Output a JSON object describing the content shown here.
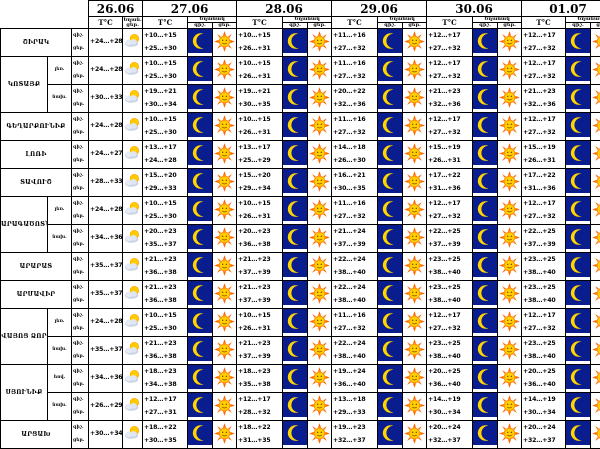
{
  "dates": [
    "26.06",
    "27.06",
    "28.06",
    "29.06",
    "30.06",
    "01.07"
  ],
  "temp_header": "T°C",
  "night_label": "գիշ.",
  "day_label": "ցեր.",
  "kerp_label": "Եղան.",
  "kerpaxac_label": "Եղանակ",
  "icons": {
    "night": "moon-icon",
    "day": "sun-icon",
    "partly": "cloud-sun-icon"
  },
  "regions": [
    {
      "name": "ՇԻՐԱԿ",
      "rows": [
        {
          "sub": "",
          "t": [
            "+24…+28",
            "+10…+15",
            "+10…+15",
            "+11…+16",
            "+12…+17",
            "+12…+17"
          ],
          "t2": [
            "",
            "+25…+30",
            "+26…+31",
            "+27…+32",
            "+27…+32",
            "+27…+32"
          ]
        }
      ]
    },
    {
      "name": "ԿՈՏԱՅՔ",
      "rows": [
        {
          "sub": "լեռ.",
          "t": [
            "+24…+28",
            "+10…+15",
            "+10…+15",
            "+11…+16",
            "+12…+17",
            "+12…+17"
          ],
          "t2": [
            "",
            "+25…+30",
            "+26…+31",
            "+27…+32",
            "+27…+32",
            "+27…+32"
          ]
        },
        {
          "sub": "նախ.",
          "t": [
            "+30…+33",
            "+19…+21",
            "+19…+21",
            "+20…+22",
            "+21…+23",
            "+21…+23"
          ],
          "t2": [
            "",
            "+30…+34",
            "+30…+35",
            "+32…+36",
            "+32…+36",
            "+32…+36"
          ]
        }
      ]
    },
    {
      "name": "ԳԵՂԱՐՔՈՒՆԻՔ",
      "rows": [
        {
          "sub": "",
          "t": [
            "+24…+28",
            "+10…+15",
            "+10…+15",
            "+11…+16",
            "+12…+17",
            "+12…+17"
          ],
          "t2": [
            "",
            "+25…+30",
            "+26…+31",
            "+27…+32",
            "+27…+32",
            "+27…+32"
          ]
        }
      ]
    },
    {
      "name": "ԼՈՌԻ",
      "rows": [
        {
          "sub": "",
          "t": [
            "+24…+27",
            "+13…+17",
            "+13…+17",
            "+14…+18",
            "+15…+19",
            "+15…+19"
          ],
          "t2": [
            "",
            "+24…+28",
            "+25…+29",
            "+26…+30",
            "+26…+31",
            "+26…+31"
          ]
        }
      ]
    },
    {
      "name": "ՏԱՎՈՒՇ",
      "rows": [
        {
          "sub": "",
          "t": [
            "+28…+33",
            "+15…+20",
            "+15…+20",
            "+16…+21",
            "+17…+22",
            "+17…+22"
          ],
          "t2": [
            "",
            "+29…+33",
            "+29…+34",
            "+30…+35",
            "+31…+36",
            "+31…+36"
          ]
        }
      ]
    },
    {
      "name": "ԱՐԱԳԱԾՈՏՆ",
      "rows": [
        {
          "sub": "լեռ.",
          "t": [
            "+24…+28",
            "+10…+15",
            "+10…+15",
            "+11…+16",
            "+12…+17",
            "+12…+17"
          ],
          "t2": [
            "",
            "+25…+30",
            "+26…+31",
            "+27…+32",
            "+27…+32",
            "+27…+32"
          ]
        },
        {
          "sub": "նախ.",
          "t": [
            "+34…+36",
            "+20…+23",
            "+20…+23",
            "+21…+24",
            "+22…+25",
            "+22…+25"
          ],
          "t2": [
            "",
            "+35…+37",
            "+36…+38",
            "+37…+39",
            "+37…+39",
            "+37…+39"
          ]
        }
      ]
    },
    {
      "name": "ԱՐԱՐԱՏ",
      "rows": [
        {
          "sub": "",
          "t": [
            "+35…+37",
            "+21…+23",
            "+21…+23",
            "+22…+24",
            "+23…+25",
            "+23…+25"
          ],
          "t2": [
            "",
            "+36…+38",
            "+37…+39",
            "+38…+40",
            "+38…+40",
            "+38…+40"
          ]
        }
      ]
    },
    {
      "name": "ԱՐՄԱՎԻՐ",
      "rows": [
        {
          "sub": "",
          "t": [
            "+35…+37",
            "+21…+23",
            "+21…+23",
            "+22…+24",
            "+23…+25",
            "+23…+25"
          ],
          "t2": [
            "",
            "+36…+38",
            "+37…+39",
            "+38…+40",
            "+38…+40",
            "+38…+40"
          ]
        }
      ]
    },
    {
      "name": "ՎԱՅՈՑ ՁՈՐ",
      "rows": [
        {
          "sub": "լեռ.",
          "t": [
            "+24…+28",
            "+10…+15",
            "+10…+15",
            "+11…+16",
            "+12…+17",
            "+12…+17"
          ],
          "t2": [
            "",
            "+25…+30",
            "+26…+31",
            "+27…+32",
            "+27…+32",
            "+27…+32"
          ]
        },
        {
          "sub": "նախ.",
          "t": [
            "+35…+37",
            "+21…+23",
            "+21…+23",
            "+22…+24",
            "+23…+25",
            "+23…+25"
          ],
          "t2": [
            "",
            "+36…+38",
            "+37…+39",
            "+38…+40",
            "+38…+40",
            "+38…+40"
          ]
        }
      ]
    },
    {
      "name": "ՍՅՈՒՆԻՔ",
      "rows": [
        {
          "sub": "հով.",
          "t": [
            "+34…+36",
            "+18…+23",
            "+18…+23",
            "+19…+24",
            "+20…+25",
            "+20…+25"
          ],
          "t2": [
            "",
            "+34…+38",
            "+35…+38",
            "+36…+40",
            "+36…+40",
            "+36…+40"
          ]
        },
        {
          "sub": "նախ.",
          "t": [
            "+26…+29",
            "+12…+17",
            "+12…+17",
            "+13…+18",
            "+14…+19",
            "+14…+19"
          ],
          "t2": [
            "",
            "+27…+31",
            "+28…+32",
            "+29…+33",
            "+30…+34",
            "+30…+34"
          ]
        }
      ]
    },
    {
      "name": "ԱՐՑԱԽ",
      "rows": [
        {
          "sub": "",
          "t": [
            "+30…+34",
            "+18…+22",
            "+18…+22",
            "+19…+23",
            "+20…+24",
            "+20…+24"
          ],
          "t2": [
            "",
            "+30…+35",
            "+31…+35",
            "+32…+37",
            "+32…+37",
            "+32…+37"
          ]
        }
      ]
    }
  ]
}
